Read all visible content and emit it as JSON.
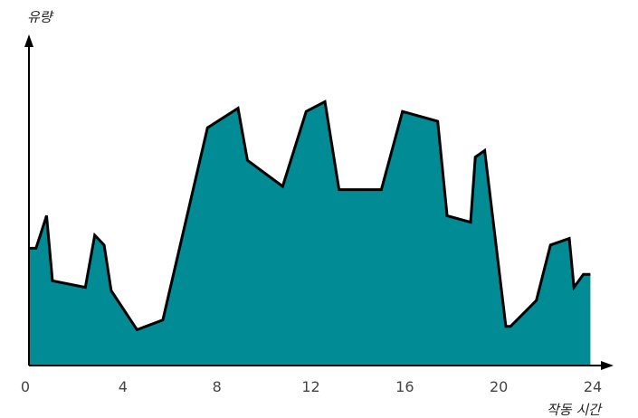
{
  "chart_data": {
    "type": "area",
    "xlabel": "작동 시간",
    "ylabel": "유량",
    "xlim": [
      0,
      24
    ],
    "ylim": [
      0,
      100
    ],
    "x_ticks": [
      0,
      4,
      8,
      12,
      16,
      20,
      24
    ],
    "x_tick_labels": [
      "0",
      "4",
      "8",
      "12",
      "16",
      "20",
      "24"
    ],
    "grid": false,
    "fill_color": "#008b95",
    "line_color": "#000000",
    "axis_color": "#000000",
    "series": [
      {
        "x": [
          0,
          0.3,
          0.75,
          1.0,
          2.4,
          2.8,
          3.2,
          3.5,
          4.6,
          5.7,
          7.6,
          8.9,
          9.3,
          10.8,
          11.8,
          12.6,
          13.2,
          15.0,
          15.9,
          17.4,
          17.8,
          18.8,
          19.0,
          19.4,
          20.3,
          20.5,
          21.6,
          22.2,
          23.0,
          23.2,
          23.6,
          23.9
        ],
        "y": [
          36,
          36,
          46,
          26,
          24,
          40,
          37,
          23,
          11,
          14,
          73,
          79,
          63,
          55,
          78,
          81,
          54,
          54,
          78,
          75,
          46,
          44,
          64,
          66,
          12,
          12,
          20,
          37,
          39,
          24,
          28,
          28
        ]
      }
    ]
  }
}
